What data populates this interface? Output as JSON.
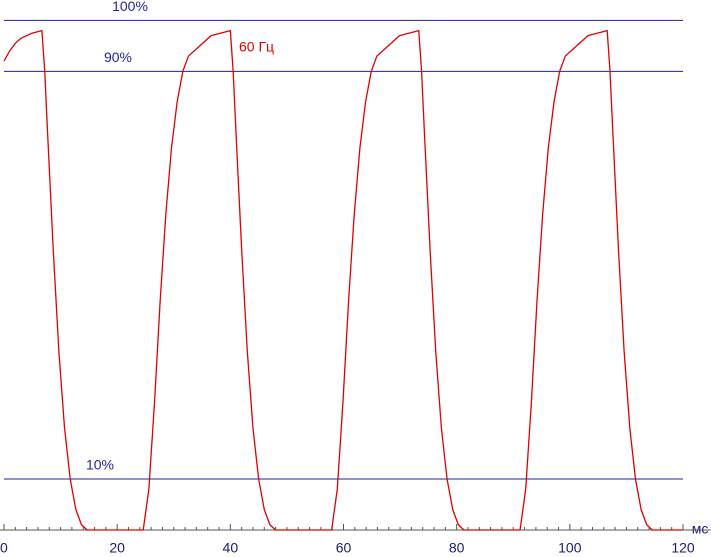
{
  "chart_data": {
    "type": "line",
    "x_label": "мс",
    "xlim": [
      0,
      120
    ],
    "xticks": [
      0,
      20,
      40,
      60,
      80,
      100,
      120
    ],
    "ylim": [
      0,
      104
    ],
    "yticks": [
      {
        "value": 10,
        "label": "10%"
      },
      {
        "value": 90,
        "label": "90%"
      },
      {
        "value": 100,
        "label": "100%"
      }
    ],
    "grid": true,
    "grid_color": "#1f1fa8",
    "x": [
      0,
      1,
      2,
      3,
      4,
      5,
      6.7,
      7.2,
      7.7,
      8.7,
      9.7,
      10.7,
      11.7,
      12.7,
      13.7,
      14.7,
      24.6,
      25.6,
      26.6,
      27.6,
      28.6,
      29.6,
      30.6,
      31.6,
      32.6,
      34.6,
      36.6,
      40.0,
      40.5,
      41.0,
      42.0,
      43.0,
      44.0,
      45.0,
      46.0,
      47.0,
      48.0,
      57.9,
      58.9,
      59.9,
      60.9,
      61.9,
      62.9,
      63.9,
      64.9,
      65.9,
      67.9,
      69.9,
      73.3,
      73.8,
      74.3,
      75.3,
      76.3,
      77.3,
      78.3,
      79.3,
      80.3,
      81.3,
      91.2,
      92.2,
      93.2,
      94.2,
      95.2,
      96.2,
      97.2,
      98.2,
      99.2,
      101.2,
      103.2,
      106.6,
      107.1,
      107.6,
      108.6,
      109.6,
      110.6,
      111.6,
      112.6,
      113.6,
      114.6,
      120
    ],
    "series": [
      {
        "name": "60 Гц",
        "color": "#e00000",
        "values": [
          92,
          94,
          95.5,
          96.5,
          97,
          97.5,
          98,
          90,
          78,
          55,
          35,
          20,
          10,
          4,
          1,
          0,
          0,
          8,
          25,
          45,
          62,
          75,
          84,
          90,
          93,
          95,
          97,
          98,
          90,
          78,
          55,
          35,
          20,
          10,
          4,
          1,
          0,
          0,
          8,
          25,
          45,
          62,
          75,
          84,
          90,
          93,
          95,
          97,
          98,
          90,
          78,
          55,
          35,
          20,
          10,
          4,
          1,
          0,
          0,
          8,
          25,
          45,
          62,
          75,
          84,
          90,
          93,
          95,
          97,
          98,
          90,
          78,
          55,
          35,
          20,
          10,
          4,
          1,
          0,
          0
        ]
      }
    ]
  }
}
